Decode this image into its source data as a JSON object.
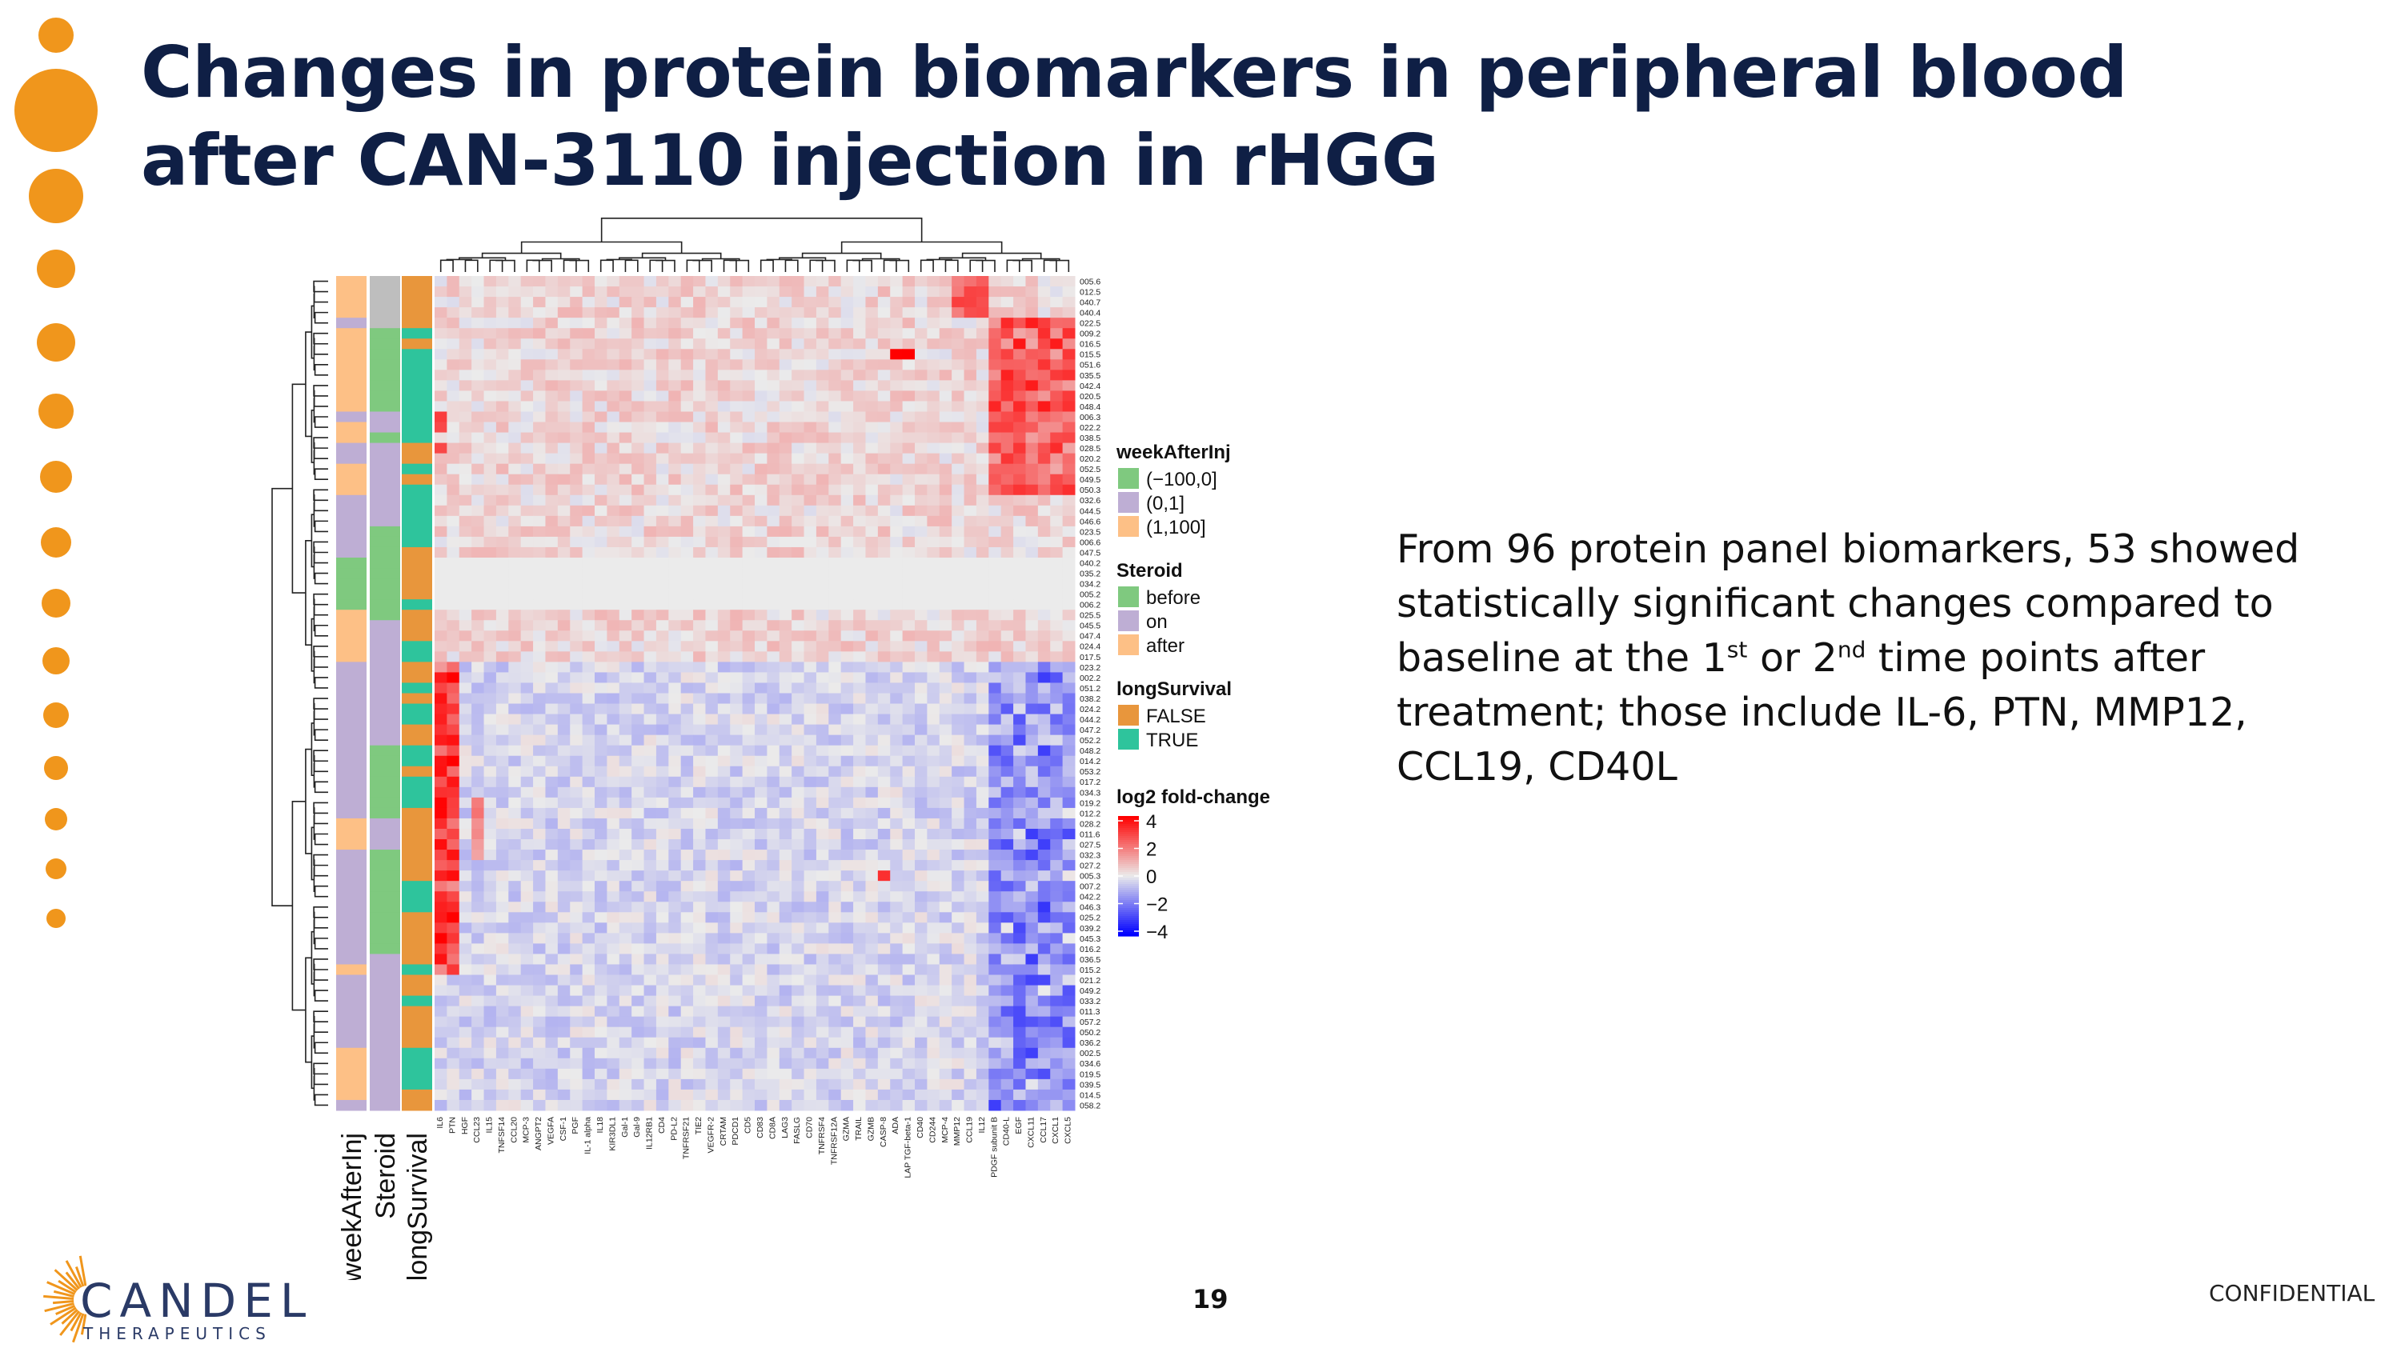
{
  "slide": {
    "title_line1": "Changes in protein biomarkers in peripheral blood",
    "title_line2": "after CAN-3110 injection in rHGG",
    "body_line1": "From 96 protein panel biomarkers, 53 showed",
    "body_line2": "statistically significant changes compared to",
    "body_line3_a": "baseline at the 1",
    "body_line3_sup1": "st",
    "body_line3_b": " or 2",
    "body_line3_sup2": "nd",
    "body_line3_c": " time points after",
    "body_line4": "treatment; those include IL-6, PTN, MMP12,",
    "body_line5": "CCL19, CD40L",
    "page_number": "19",
    "confidential": "CONFIDENTIAL",
    "logo_name": "CANDEL",
    "logo_sub": "THERAPEUTICS"
  },
  "colors": {
    "accent_orange": "#f0961c",
    "title_navy": "#0f1f45",
    "week_neg": "#7fc97f",
    "week_mid": "#beaed4",
    "week_pos": "#fdc086",
    "steroid_before": "#7fc97f",
    "steroid_on": "#beaed4",
    "steroid_after": "#fdc086",
    "surv_false": "#e8963c",
    "surv_true": "#2ec49c",
    "na_gray": "#bebebe",
    "empty_cell": "#ebebeb"
  },
  "chart_data": {
    "type": "heatmap",
    "title": "",
    "value_label": "log2 fold-change",
    "value_range": [
      -4,
      4
    ],
    "color_ticks": [
      "4",
      "2",
      "0",
      "−2",
      "−4"
    ],
    "annotation_tracks": [
      "weekAfterInj",
      "Steroid",
      "longSurvival"
    ],
    "legends": [
      {
        "title": "weekAfterInj",
        "items": [
          {
            "label": "(−100,0]",
            "color": "#7fc97f"
          },
          {
            "label": "(0,1]",
            "color": "#beaed4"
          },
          {
            "label": "(1,100]",
            "color": "#fdc086"
          }
        ]
      },
      {
        "title": "Steroid",
        "items": [
          {
            "label": "before",
            "color": "#7fc97f"
          },
          {
            "label": "on",
            "color": "#beaed4"
          },
          {
            "label": "after",
            "color": "#fdc086"
          }
        ]
      },
      {
        "title": "longSurvival",
        "items": [
          {
            "label": "FALSE",
            "color": "#e8963c"
          },
          {
            "label": "TRUE",
            "color": "#2ec49c"
          }
        ]
      }
    ],
    "rows": [
      "005.6",
      "012.5",
      "040.7",
      "040.4",
      "022.5",
      "009.2",
      "016.5",
      "015.5",
      "051.6",
      "035.5",
      "042.4",
      "020.5",
      "048.4",
      "006.3",
      "022.2",
      "038.5",
      "028.5",
      "020.2",
      "052.5",
      "049.5",
      "050.3",
      "032.6",
      "044.5",
      "046.6",
      "023.5",
      "006.6",
      "047.5",
      "040.2",
      "035.2",
      "034.2",
      "005.2",
      "006.2",
      "025.5",
      "045.5",
      "047.4",
      "024.4",
      "017.5",
      "023.2",
      "002.2",
      "051.2",
      "038.2",
      "024.2",
      "044.2",
      "047.2",
      "052.2",
      "048.2",
      "014.2",
      "053.2",
      "017.2",
      "034.3",
      "019.2",
      "012.2",
      "028.2",
      "011.6",
      "027.5",
      "032.3",
      "027.2",
      "005.3",
      "007.2",
      "042.2",
      "046.3",
      "025.2",
      "039.2",
      "045.3",
      "016.2",
      "036.5",
      "015.2",
      "021.2",
      "049.2",
      "033.2",
      "011.3",
      "057.2",
      "050.2",
      "036.2",
      "002.5",
      "034.6",
      "019.5",
      "039.5",
      "014.5",
      "058.2"
    ],
    "columns": [
      "IL6",
      "PTN",
      "HGF",
      "CCL23",
      "IL15",
      "TNFSF14",
      "CCL20",
      "MCP-3",
      "ANGPT2",
      "VEGFA",
      "CSF-1",
      "PGF",
      "IL-1 alpha",
      "IL18",
      "KIR3DL1",
      "Gal-1",
      "Gal-9",
      "IL12RB1",
      "CD4",
      "PD-L2",
      "TNFRSF21",
      "TIE2",
      "VEGFR-2",
      "CRTAM",
      "PDCD1",
      "CD5",
      "CD83",
      "CD8A",
      "LAG3",
      "FASLG",
      "CD70",
      "TNFRSF4",
      "TNFRSF12A",
      "GZMA",
      "TRAIL",
      "GZMB",
      "CASP-8",
      "ADA",
      "LAP TGF-beta-1",
      "CD40",
      "CD244",
      "MCP-4",
      "MMP12",
      "CCL19",
      "IL12",
      "PDGF subunit B",
      "CD40-L",
      "EGF",
      "CXCL11",
      "CCL17",
      "CXCL1",
      "CXCL5"
    ],
    "annotations": {
      "weekAfterInj": [
        "pos",
        "pos",
        "pos",
        "pos",
        "mid",
        "pos",
        "pos",
        "pos",
        "pos",
        "pos",
        "pos",
        "pos",
        "pos",
        "mid",
        "pos",
        "pos",
        "mid",
        "mid",
        "pos",
        "pos",
        "pos",
        "mid",
        "mid",
        "mid",
        "mid",
        "mid",
        "mid",
        "neg",
        "neg",
        "neg",
        "neg",
        "neg",
        "pos",
        "pos",
        "pos",
        "pos",
        "pos",
        "mid",
        "mid",
        "mid",
        "mid",
        "mid",
        "mid",
        "mid",
        "mid",
        "mid",
        "mid",
        "mid",
        "mid",
        "mid",
        "mid",
        "mid",
        "pos",
        "pos",
        "pos",
        "mid",
        "mid",
        "mid",
        "mid",
        "mid",
        "mid",
        "mid",
        "mid",
        "mid",
        "mid",
        "mid",
        "pos",
        "mid",
        "mid",
        "mid",
        "mid",
        "mid",
        "mid",
        "mid",
        "pos",
        "pos",
        "pos",
        "pos",
        "pos",
        "mid"
      ],
      "Steroid": [
        "na",
        "na",
        "na",
        "na",
        "na",
        "neg",
        "neg",
        "neg",
        "neg",
        "neg",
        "neg",
        "neg",
        "neg",
        "mid",
        "mid",
        "neg",
        "mid",
        "mid",
        "mid",
        "mid",
        "mid",
        "mid",
        "mid",
        "mid",
        "neg",
        "neg",
        "neg",
        "neg",
        "neg",
        "neg",
        "neg",
        "neg",
        "neg",
        "mid",
        "mid",
        "mid",
        "mid",
        "mid",
        "mid",
        "mid",
        "mid",
        "mid",
        "mid",
        "mid",
        "mid",
        "neg",
        "neg",
        "neg",
        "neg",
        "neg",
        "neg",
        "neg",
        "mid",
        "mid",
        "mid",
        "neg",
        "neg",
        "neg",
        "neg",
        "neg",
        "neg",
        "neg",
        "neg",
        "neg",
        "neg",
        "mid",
        "mid",
        "mid",
        "mid",
        "mid",
        "mid",
        "mid",
        "mid",
        "mid",
        "mid",
        "mid",
        "mid",
        "mid",
        "mid",
        "mid"
      ],
      "longSurvival": [
        "F",
        "F",
        "F",
        "F",
        "F",
        "T",
        "F",
        "T",
        "T",
        "T",
        "T",
        "T",
        "T",
        "T",
        "T",
        "T",
        "F",
        "F",
        "T",
        "F",
        "T",
        "T",
        "T",
        "T",
        "T",
        "T",
        "F",
        "F",
        "F",
        "F",
        "F",
        "T",
        "F",
        "F",
        "F",
        "T",
        "T",
        "F",
        "F",
        "T",
        "F",
        "T",
        "T",
        "F",
        "F",
        "T",
        "T",
        "F",
        "T",
        "T",
        "T",
        "F",
        "F",
        "F",
        "F",
        "F",
        "F",
        "F",
        "T",
        "T",
        "T",
        "F",
        "F",
        "F",
        "F",
        "F",
        "T",
        "F",
        "F",
        "T",
        "F",
        "F",
        "F",
        "F",
        "T",
        "T",
        "T",
        "T",
        "F",
        "F"
      ]
    }
  }
}
